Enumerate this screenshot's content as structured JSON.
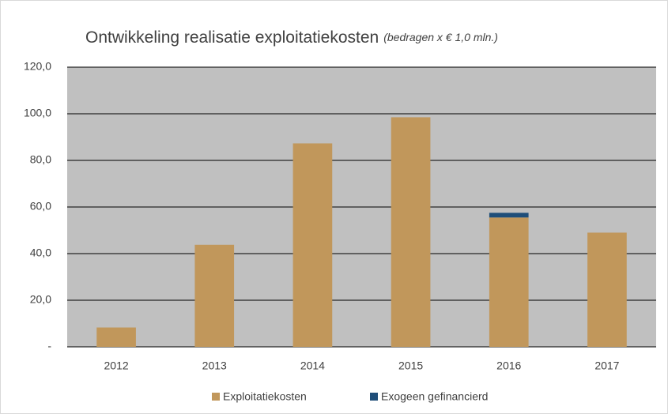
{
  "chart_data": {
    "type": "bar",
    "stacked": true,
    "title": "Ontwikkeling realisatie exploitatiekosten",
    "subtitle": "(bedragen x € 1,0 mln.)",
    "categories": [
      "2012",
      "2013",
      "2014",
      "2015",
      "2016",
      "2017"
    ],
    "series": [
      {
        "name": "Exploitatiekosten",
        "color": "#c1975b",
        "values": [
          8.3,
          43.8,
          87.3,
          98.5,
          55.5,
          49.0
        ]
      },
      {
        "name": "Exogeen gefinancierd",
        "color": "#1f4e79",
        "values": [
          0,
          0,
          0,
          0,
          2.0,
          0
        ]
      }
    ],
    "ylim": [
      0,
      120
    ],
    "yticks": [
      {
        "value": 0,
        "label": "-"
      },
      {
        "value": 20,
        "label": "20,0"
      },
      {
        "value": 40,
        "label": "40,0"
      },
      {
        "value": 60,
        "label": "60,0"
      },
      {
        "value": 80,
        "label": "80,0"
      },
      {
        "value": 100,
        "label": "100,0"
      },
      {
        "value": 120,
        "label": "120,0"
      }
    ],
    "grid": true,
    "legend": "bottom",
    "plot_background": "#c0c0c0"
  }
}
